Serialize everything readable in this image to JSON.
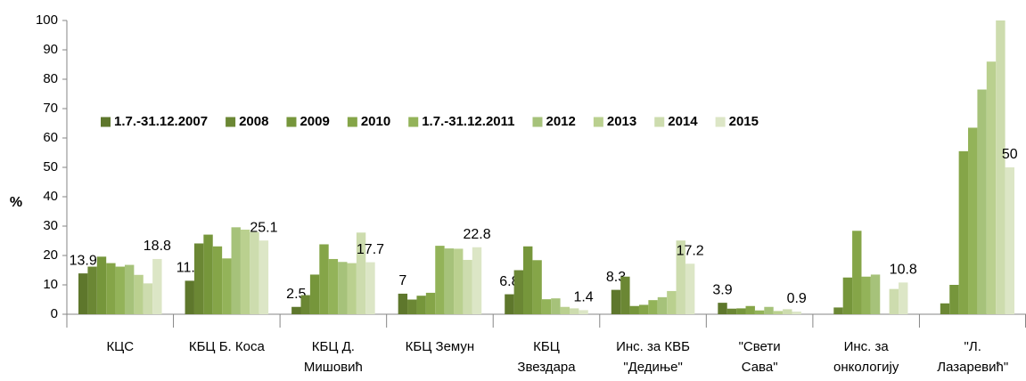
{
  "chart_data": {
    "type": "bar",
    "y_axis_label": "%",
    "ylim": [
      0,
      100
    ],
    "yticks": [
      0,
      10,
      20,
      30,
      40,
      50,
      60,
      70,
      80,
      90,
      100
    ],
    "grid": false,
    "legend_position": "top-left",
    "categories": [
      [
        "КЦС"
      ],
      [
        "КБЦ Б. Коса"
      ],
      [
        "КБЦ Д.",
        "Мишовић"
      ],
      [
        "КБЦ Земун"
      ],
      [
        "КБЦ",
        "Звездара"
      ],
      [
        "Инс. за КВБ",
        "\"Дедиње\""
      ],
      [
        "\"Свети",
        "Сава\""
      ],
      [
        "Инс. за",
        "онкологију"
      ],
      [
        "\"Л.",
        "Лазаревић\""
      ]
    ],
    "series": [
      {
        "name": "1.7.-31.12.2007",
        "color": "#5e772c",
        "show_labels": true,
        "values": [
          13.9,
          11.4,
          2.5,
          7,
          6.8,
          8.3,
          3.9,
          null,
          null
        ]
      },
      {
        "name": "2008",
        "color": "#6b8734",
        "values": [
          16.2,
          24.1,
          6.5,
          5,
          15,
          12.8,
          1.9,
          2.3,
          3.7
        ]
      },
      {
        "name": "2009",
        "color": "#76963b",
        "values": [
          19.6,
          27.1,
          13.5,
          6.3,
          23.1,
          2.8,
          2,
          12.5,
          10
        ]
      },
      {
        "name": "2010",
        "color": "#85a548",
        "values": [
          17.4,
          23.1,
          23.8,
          7.3,
          18.4,
          3.2,
          2.8,
          28.4,
          55.5
        ]
      },
      {
        "name": "1.7.-31.12.2011",
        "color": "#93b359",
        "values": [
          16.2,
          19,
          18.8,
          23.3,
          5.1,
          4.8,
          1.3,
          12.8,
          63.5
        ]
      },
      {
        "name": "2012",
        "color": "#a6c27a",
        "values": [
          16.8,
          29.6,
          17.8,
          22.4,
          5.4,
          5.8,
          2.5,
          13.5,
          76.5
        ]
      },
      {
        "name": "2013",
        "color": "#bad08f",
        "values": [
          13.4,
          28.8,
          17.4,
          22.3,
          2.5,
          7.9,
          1.1,
          null,
          86
        ]
      },
      {
        "name": "2014",
        "color": "#cddcae",
        "values": [
          10.5,
          28,
          27.8,
          18.5,
          2,
          25.1,
          1.7,
          8.6,
          100
        ]
      },
      {
        "name": "2015",
        "color": "#dce6c6",
        "show_labels": true,
        "values": [
          18.8,
          25.1,
          17.7,
          22.8,
          1.4,
          17.2,
          0.9,
          10.8,
          50
        ]
      }
    ]
  }
}
